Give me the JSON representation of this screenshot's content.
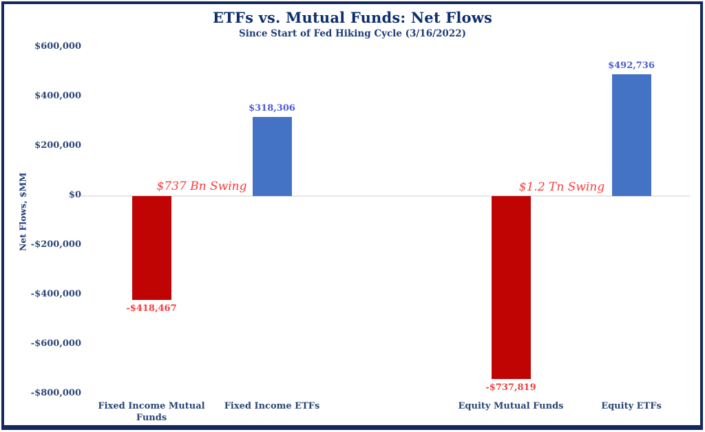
{
  "chart_data": {
    "type": "bar",
    "title": "ETFs vs. Mutual Funds: Net Flows",
    "subtitle": "Since Start of Fed Hiking Cycle (3/16/2022)",
    "ylabel": "Net Flows, $MM",
    "xlabel": "",
    "ylim": [
      -800000,
      600000
    ],
    "ytick_step": 200000,
    "grid": false,
    "legend": "none",
    "categories": [
      "Fixed Income Mutual Funds",
      "Fixed Income ETFs",
      "Equity Mutual Funds",
      "Equity ETFs"
    ],
    "values": [
      -418467,
      318306,
      -737819,
      492736
    ],
    "value_labels": [
      "-$418,467",
      "$318,306",
      "-$737,819",
      "$492,736"
    ],
    "ytick_values": [
      600000,
      400000,
      200000,
      0,
      -200000,
      -400000,
      -600000,
      -800000
    ],
    "ytick_labels": [
      "$600,000",
      "$400,000",
      "$200,000",
      "$0",
      "-$200,000",
      "-$400,000",
      "-$600,000",
      "-$800,000"
    ],
    "annotations": [
      {
        "text": "$737 Bn Swing"
      },
      {
        "text": "$1.2 Tn Swing"
      }
    ],
    "colors": {
      "positive_bar": "#4472C4",
      "negative_bar": "#C00404",
      "positive_label": "#4A5CD4",
      "negative_label": "#FA3B3B",
      "annotation": "#FA3B3B",
      "axis_text": "#2B4576",
      "title_text": "#0D2E6D",
      "zero_line": "#E6E6E6",
      "frame": "#13295B"
    }
  }
}
